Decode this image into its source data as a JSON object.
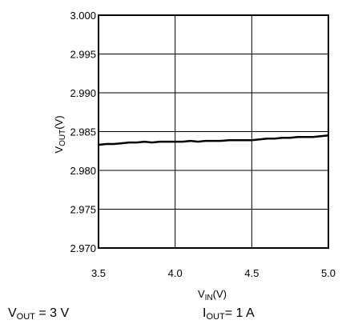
{
  "chart_data": {
    "type": "line",
    "title": "",
    "xlabel": {
      "main": "V",
      "sub": "IN",
      "suffix": "(V)"
    },
    "ylabel": {
      "main": "V",
      "sub": "OUT",
      "suffix": "(V)"
    },
    "xlim": [
      3.5,
      5.0
    ],
    "ylim": [
      2.97,
      3.0
    ],
    "xticks": [
      "3.5",
      "4.0",
      "4.5",
      "5.0"
    ],
    "yticks": [
      "2.970",
      "2.975",
      "2.980",
      "2.985",
      "2.990",
      "2.995",
      "3.000"
    ],
    "grid": "vertical and horizontal",
    "line_color": "#000000",
    "series": [
      {
        "x": [
          3.5,
          3.55,
          3.6,
          3.65,
          3.7,
          3.75,
          3.8,
          3.85,
          3.9,
          3.95,
          4.0,
          4.05,
          4.1,
          4.15,
          4.2,
          4.25,
          4.3,
          4.35,
          4.4,
          4.45,
          4.5,
          4.55,
          4.6,
          4.65,
          4.7,
          4.75,
          4.8,
          4.85,
          4.9,
          4.95,
          5.0
        ],
        "values": [
          2.9833,
          2.9834,
          2.9834,
          2.9835,
          2.9836,
          2.9836,
          2.9837,
          2.9836,
          2.9837,
          2.9837,
          2.9837,
          2.9837,
          2.9838,
          2.9837,
          2.9838,
          2.9838,
          2.9838,
          2.9839,
          2.9839,
          2.9839,
          2.9839,
          2.984,
          2.9841,
          2.9841,
          2.9842,
          2.9842,
          2.9843,
          2.9843,
          2.9843,
          2.9844,
          2.9845
        ]
      }
    ]
  },
  "conditions": {
    "vout": {
      "main": "V",
      "sub": "OUT",
      "suffix": " = 3 V"
    },
    "iout": {
      "main": "I",
      "sub": "OUT",
      "suffix": "= 1 A"
    }
  }
}
